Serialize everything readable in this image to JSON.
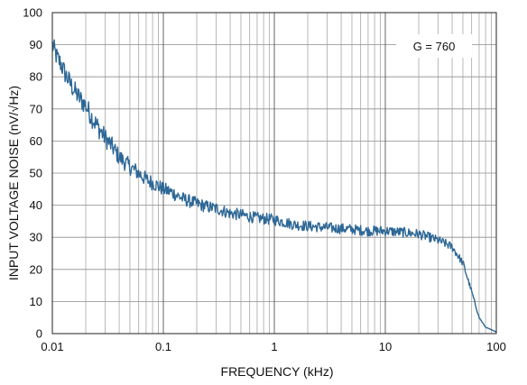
{
  "chart_data": {
    "type": "line",
    "title": "",
    "xlabel": "FREQUENCY (kHz)",
    "ylabel": "INPUT VOLTAGE NOISE (nV/√Hz)",
    "x_scale": "log",
    "xlim": [
      0.01,
      100
    ],
    "ylim": [
      0,
      100
    ],
    "x_ticks": [
      {
        "value": 0.01,
        "label": "0.01"
      },
      {
        "value": 0.1,
        "label": "0.1"
      },
      {
        "value": 1,
        "label": "1"
      },
      {
        "value": 10,
        "label": "10"
      },
      {
        "value": 100,
        "label": "100"
      }
    ],
    "y_ticks": [
      {
        "value": 0,
        "label": "0"
      },
      {
        "value": 10,
        "label": "10"
      },
      {
        "value": 20,
        "label": "20"
      },
      {
        "value": 30,
        "label": "30"
      },
      {
        "value": 40,
        "label": "40"
      },
      {
        "value": 50,
        "label": "50"
      },
      {
        "value": 60,
        "label": "60"
      },
      {
        "value": 70,
        "label": "70"
      },
      {
        "value": 80,
        "label": "80"
      },
      {
        "value": 90,
        "label": "90"
      },
      {
        "value": 100,
        "label": "100"
      }
    ],
    "grid": true,
    "annotation": "G = 760",
    "line_color": "#2d6796",
    "series": [
      {
        "x": [
          0.01,
          0.011,
          0.012,
          0.013,
          0.015,
          0.017,
          0.02,
          0.023,
          0.025,
          0.03,
          0.035,
          0.04,
          0.05,
          0.06,
          0.07,
          0.08,
          0.1,
          0.12,
          0.15,
          0.2,
          0.25,
          0.3,
          0.4,
          0.5,
          0.7,
          1,
          1.5,
          2,
          3,
          5,
          7,
          10,
          15,
          20,
          25,
          30,
          35,
          40,
          50,
          60,
          70,
          80,
          100
        ],
        "values": [
          90,
          86,
          84,
          81,
          77,
          74,
          71,
          67,
          65,
          61,
          58,
          55,
          52,
          50,
          48,
          47,
          45,
          44,
          42,
          40.5,
          39.5,
          39,
          37.5,
          37,
          36,
          35.5,
          34,
          33.5,
          33,
          32.5,
          32,
          32,
          31.5,
          31,
          30,
          29,
          28,
          27,
          22,
          13,
          5,
          2,
          0.5
        ]
      }
    ]
  }
}
